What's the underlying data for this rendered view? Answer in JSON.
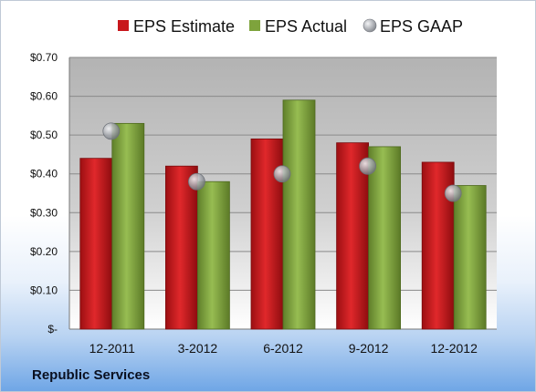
{
  "company": "Republic Services",
  "chart_data": {
    "type": "bar",
    "categories": [
      "12-2011",
      "3-2012",
      "6-2012",
      "9-2012",
      "12-2012"
    ],
    "series": [
      {
        "name": "EPS Estimate",
        "type": "bar",
        "color": "#c8171c",
        "values": [
          0.44,
          0.42,
          0.49,
          0.48,
          0.43
        ]
      },
      {
        "name": "EPS Actual",
        "type": "bar",
        "color": "#7ea33c",
        "values": [
          0.53,
          0.38,
          0.59,
          0.47,
          0.37
        ]
      },
      {
        "name": "EPS GAAP",
        "type": "marker",
        "color": "#a9acb2",
        "values": [
          0.51,
          0.38,
          0.4,
          0.42,
          0.35
        ]
      }
    ],
    "ylim": [
      0,
      0.7
    ],
    "yticks": [
      {
        "value": 0,
        "label": "$-"
      },
      {
        "value": 0.1,
        "label": "$0.10"
      },
      {
        "value": 0.2,
        "label": "$0.20"
      },
      {
        "value": 0.3,
        "label": "$0.30"
      },
      {
        "value": 0.4,
        "label": "$0.40"
      },
      {
        "value": 0.5,
        "label": "$0.50"
      },
      {
        "value": 0.6,
        "label": "$0.60"
      },
      {
        "value": 0.7,
        "label": "$0.70"
      }
    ],
    "grid": true,
    "legend": "top"
  }
}
